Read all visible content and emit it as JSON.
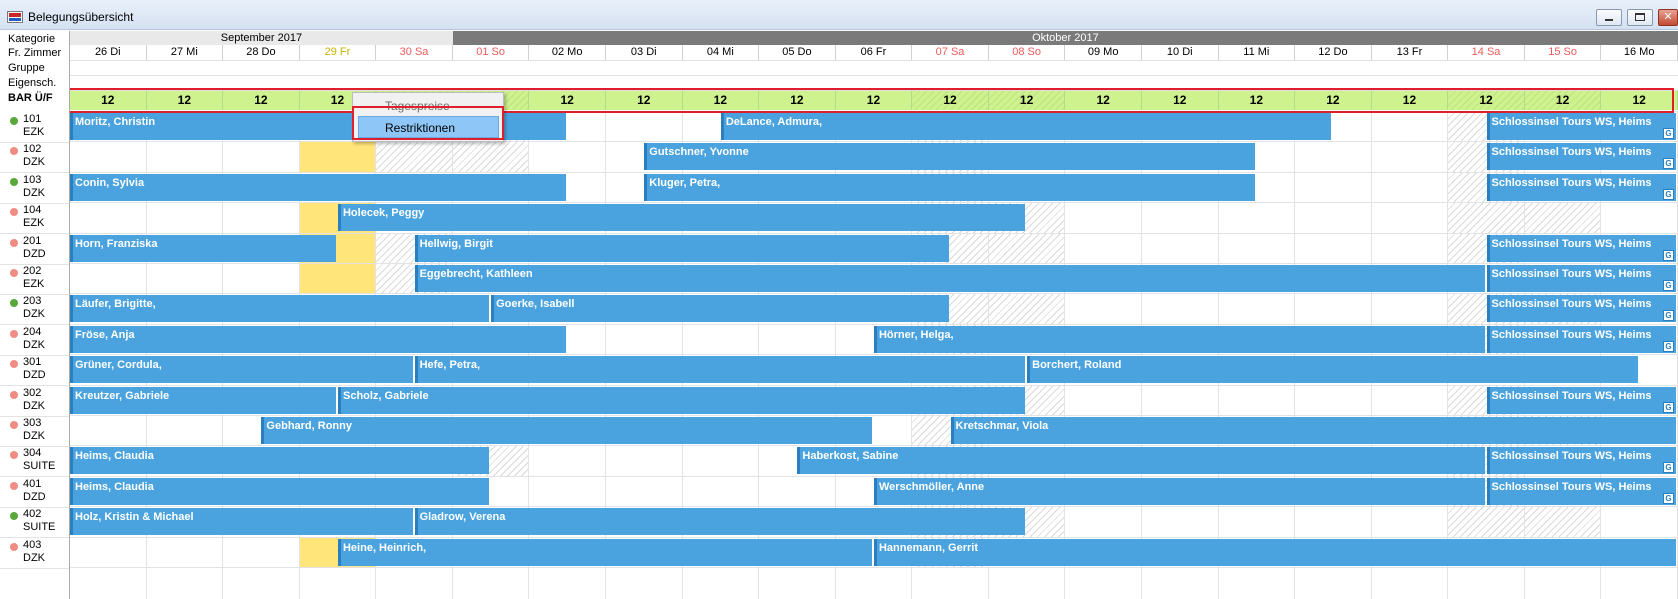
{
  "window": {
    "title": "Belegungsübersicht"
  },
  "colors": {
    "booking": "#4aa3df",
    "bar_row": "#cdf28e",
    "highlight": "#e01f2d",
    "weekend_text": "#ee5a5a",
    "today_text": "#c8b400",
    "dot_green": "#5aa83a",
    "dot_red": "#f08c84"
  },
  "left_labels": {
    "kategorie": "Kategorie",
    "fr_zimmer": "Fr. Zimmer",
    "gruppe": "Gruppe",
    "eigensch": "Eigensch.",
    "bar": "BAR Ü/F"
  },
  "months": [
    {
      "label": "September 2017",
      "start": 0,
      "span": 5
    },
    {
      "label": "Oktober 2017",
      "start": 5,
      "span": 16
    }
  ],
  "days": [
    {
      "label": "26 Di",
      "type": "normal"
    },
    {
      "label": "27 Mi",
      "type": "normal"
    },
    {
      "label": "28 Do",
      "type": "normal"
    },
    {
      "label": "29 Fr",
      "type": "today"
    },
    {
      "label": "30 Sa",
      "type": "weekend"
    },
    {
      "label": "01 So",
      "type": "weekend"
    },
    {
      "label": "02 Mo",
      "type": "normal"
    },
    {
      "label": "03 Di",
      "type": "normal"
    },
    {
      "label": "04 Mi",
      "type": "normal"
    },
    {
      "label": "05 Do",
      "type": "normal"
    },
    {
      "label": "06 Fr",
      "type": "normal"
    },
    {
      "label": "07 Sa",
      "type": "weekend"
    },
    {
      "label": "08 So",
      "type": "weekend"
    },
    {
      "label": "09 Mo",
      "type": "normal"
    },
    {
      "label": "10 Di",
      "type": "normal"
    },
    {
      "label": "11 Mi",
      "type": "normal"
    },
    {
      "label": "12 Do",
      "type": "normal"
    },
    {
      "label": "13 Fr",
      "type": "normal"
    },
    {
      "label": "14 Sa",
      "type": "weekend"
    },
    {
      "label": "15 So",
      "type": "weekend"
    },
    {
      "label": "16 Mo",
      "type": "normal"
    }
  ],
  "bar_values": [
    "12",
    "12",
    "12",
    "12",
    "",
    "",
    "12",
    "12",
    "12",
    "12",
    "12",
    "12",
    "12",
    "12",
    "12",
    "12",
    "12",
    "12",
    "12",
    "12",
    "12"
  ],
  "rooms": [
    {
      "no": "101",
      "cat": "EZK",
      "status": "green"
    },
    {
      "no": "102",
      "cat": "DZK",
      "status": "red"
    },
    {
      "no": "103",
      "cat": "DZK",
      "status": "green"
    },
    {
      "no": "104",
      "cat": "EZK",
      "status": "red"
    },
    {
      "no": "201",
      "cat": "DZD",
      "status": "red"
    },
    {
      "no": "202",
      "cat": "EZK",
      "status": "red"
    },
    {
      "no": "203",
      "cat": "DZK",
      "status": "green"
    },
    {
      "no": "204",
      "cat": "DZK",
      "status": "red"
    },
    {
      "no": "301",
      "cat": "DZD",
      "status": "red"
    },
    {
      "no": "302",
      "cat": "DZK",
      "status": "red"
    },
    {
      "no": "303",
      "cat": "DZK",
      "status": "red"
    },
    {
      "no": "304",
      "cat": "SUITE",
      "status": "red"
    },
    {
      "no": "401",
      "cat": "DZD",
      "status": "red"
    },
    {
      "no": "402",
      "cat": "SUITE",
      "status": "green"
    },
    {
      "no": "403",
      "cat": "DZK",
      "status": "red"
    }
  ],
  "hatched": [
    [
      0,
      4,
      5
    ],
    [
      1,
      4,
      5
    ],
    [
      0,
      11,
      11
    ],
    [
      1,
      11,
      11
    ],
    [
      2,
      11,
      11
    ],
    [
      3,
      11,
      12
    ],
    [
      4,
      4,
      4
    ],
    [
      4,
      11,
      12
    ],
    [
      5,
      4,
      4
    ],
    [
      6,
      11,
      12
    ],
    [
      7,
      11,
      11
    ],
    [
      9,
      11,
      12
    ],
    [
      10,
      11,
      11
    ],
    [
      11,
      5,
      5
    ],
    [
      11,
      11,
      11
    ],
    [
      12,
      11,
      11
    ],
    [
      13,
      11,
      12
    ],
    [
      14,
      11,
      11
    ],
    [
      0,
      18,
      18
    ],
    [
      1,
      18,
      18
    ],
    [
      2,
      18,
      18
    ],
    [
      3,
      18,
      19
    ],
    [
      4,
      18,
      18
    ],
    [
      6,
      18,
      19
    ],
    [
      7,
      18,
      18
    ],
    [
      9,
      18,
      18
    ],
    [
      10,
      18,
      19
    ],
    [
      11,
      18,
      18
    ],
    [
      12,
      18,
      18
    ],
    [
      13,
      18,
      19
    ]
  ],
  "today_rows": [
    1,
    3,
    4,
    5,
    14
  ],
  "bookings": [
    {
      "row": 0,
      "start": 0,
      "end": 6.5,
      "name": "Moritz, Christin",
      "g": false
    },
    {
      "row": 0,
      "start": 8.5,
      "end": 16.5,
      "name": "DeLance, Admura,",
      "g": false
    },
    {
      "row": 0,
      "start": 18.5,
      "end": 21,
      "name": "Schlossinsel Tours WS, Heims",
      "g": true
    },
    {
      "row": 1,
      "start": 7.5,
      "end": 15.5,
      "name": "Gutschner, Yvonne",
      "g": false
    },
    {
      "row": 1,
      "start": 18.5,
      "end": 21,
      "name": "Schlossinsel Tours WS, Heims",
      "g": true
    },
    {
      "row": 2,
      "start": 0,
      "end": 6.5,
      "name": "Conin, Sylvia",
      "g": false
    },
    {
      "row": 2,
      "start": 7.5,
      "end": 15.5,
      "name": "Kluger, Petra,",
      "g": false
    },
    {
      "row": 2,
      "start": 18.5,
      "end": 21,
      "name": "Schlossinsel Tours WS, Heims",
      "g": true
    },
    {
      "row": 3,
      "start": 3.5,
      "end": 12.5,
      "name": "Holecek, Peggy",
      "g": false
    },
    {
      "row": 4,
      "start": 0,
      "end": 3.5,
      "name": "Horn, Franziska",
      "g": false
    },
    {
      "row": 4,
      "start": 4.5,
      "end": 11.5,
      "name": "Hellwig, Birgit",
      "g": false
    },
    {
      "row": 4,
      "start": 18.5,
      "end": 21,
      "name": "Schlossinsel Tours WS, Heims",
      "g": true
    },
    {
      "row": 5,
      "start": 4.5,
      "end": 18.5,
      "name": "Eggebrecht, Kathleen",
      "g": false
    },
    {
      "row": 5,
      "start": 18.5,
      "end": 21,
      "name": "Schlossinsel Tours WS, Heims",
      "g": true
    },
    {
      "row": 6,
      "start": 0,
      "end": 5.5,
      "name": "Läufer, Brigitte,",
      "g": false
    },
    {
      "row": 6,
      "start": 5.5,
      "end": 11.5,
      "name": "Goerke, Isabell",
      "g": false
    },
    {
      "row": 6,
      "start": 18.5,
      "end": 21,
      "name": "Schlossinsel Tours WS, Heims",
      "g": true
    },
    {
      "row": 7,
      "start": 0,
      "end": 6.5,
      "name": "Fröse, Anja",
      "g": false
    },
    {
      "row": 7,
      "start": 10.5,
      "end": 18.5,
      "name": "Hörner, Helga,",
      "g": false
    },
    {
      "row": 7,
      "start": 18.5,
      "end": 21,
      "name": "Schlossinsel Tours WS, Heims",
      "g": true
    },
    {
      "row": 8,
      "start": 0,
      "end": 4.5,
      "name": "Grüner, Cordula,",
      "g": false
    },
    {
      "row": 8,
      "start": 4.5,
      "end": 12.5,
      "name": "Hefe, Petra,",
      "g": false
    },
    {
      "row": 8,
      "start": 12.5,
      "end": 20.5,
      "name": "Borchert, Roland",
      "g": false
    },
    {
      "row": 9,
      "start": 0,
      "end": 3.5,
      "name": "Kreutzer, Gabriele",
      "g": false
    },
    {
      "row": 9,
      "start": 3.5,
      "end": 12.5,
      "name": "Scholz, Gabriele",
      "g": false
    },
    {
      "row": 9,
      "start": 18.5,
      "end": 21,
      "name": "Schlossinsel Tours WS, Heims",
      "g": true
    },
    {
      "row": 10,
      "start": 2.5,
      "end": 10.5,
      "name": "Gebhard, Ronny",
      "g": false
    },
    {
      "row": 10,
      "start": 11.5,
      "end": 21,
      "name": "Kretschmar, Viola",
      "g": false
    },
    {
      "row": 11,
      "start": 0,
      "end": 5.5,
      "name": "Heims, Claudia",
      "g": false
    },
    {
      "row": 11,
      "start": 9.5,
      "end": 18.5,
      "name": "Haberkost, Sabine",
      "g": false
    },
    {
      "row": 11,
      "start": 18.5,
      "end": 21,
      "name": "Schlossinsel Tours WS, Heims",
      "g": true
    },
    {
      "row": 12,
      "start": 0,
      "end": 5.5,
      "name": "Heims, Claudia",
      "g": false
    },
    {
      "row": 12,
      "start": 10.5,
      "end": 18.5,
      "name": "Werschmöller, Anne",
      "g": false
    },
    {
      "row": 12,
      "start": 18.5,
      "end": 21,
      "name": "Schlossinsel Tours WS, Heims",
      "g": true
    },
    {
      "row": 13,
      "start": 0,
      "end": 4.5,
      "name": "Holz, Kristin & Michael",
      "g": false
    },
    {
      "row": 13,
      "start": 4.5,
      "end": 12.5,
      "name": "Gladrow, Verena",
      "g": false
    },
    {
      "row": 14,
      "start": 3.5,
      "end": 10.5,
      "name": "Heine, Heinrich,",
      "g": false
    },
    {
      "row": 14,
      "start": 10.5,
      "end": 21,
      "name": "Hannemann, Gerrit",
      "g": false
    }
  ],
  "group_icon_letter": "G",
  "context_menu": {
    "items": [
      {
        "label": "Tagespreise",
        "state": "dim"
      },
      {
        "label": "Restriktionen",
        "state": "selected"
      }
    ]
  }
}
